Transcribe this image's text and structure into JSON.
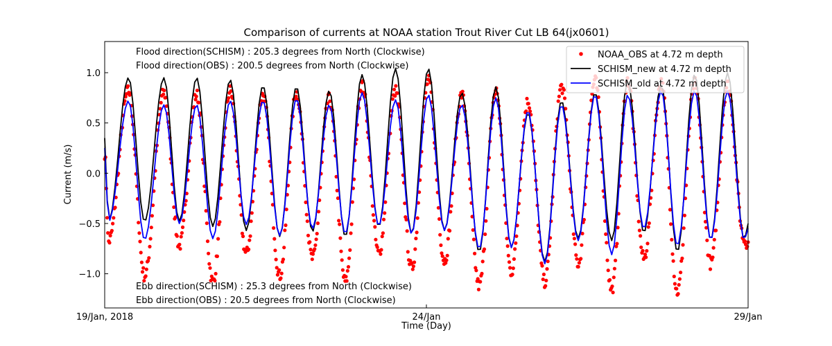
{
  "chart_data": {
    "type": "line",
    "title": "Comparison of currents at NOAA station Trout River Cut LB 64(jx0601)",
    "xlabel": "Time (Day)",
    "ylabel": "Current (m/s)",
    "xlim": [
      0,
      10
    ],
    "ylim": [
      -1.34,
      1.31
    ],
    "x_unit": "days since 19/Jan, 2018",
    "x_ticks": [
      {
        "value": 0,
        "label": "19/Jan, 2018"
      },
      {
        "value": 5,
        "label": "24/Jan"
      },
      {
        "value": 10,
        "label": "29/Jan"
      }
    ],
    "y_ticks": [
      {
        "value": 1.0,
        "label": "1.0"
      },
      {
        "value": 0.5,
        "label": "0.5"
      },
      {
        "value": 0.0,
        "label": "0.0"
      },
      {
        "value": -0.5,
        "label": "−0.5"
      },
      {
        "value": -1.0,
        "label": "−1.0"
      }
    ],
    "grid": false,
    "legend": {
      "placement": "top-right",
      "entries": [
        {
          "name": "NOAA_OBS at 4.72 m depth",
          "marker": "dot",
          "color": "#ff0000"
        },
        {
          "name": "SCHISM_new at 4.72 m depth",
          "marker": "line",
          "color": "#000000"
        },
        {
          "name": "SCHISM_old at 4.72 m depth",
          "marker": "line",
          "color": "#0000ff"
        }
      ]
    },
    "annotations": [
      {
        "text": "Flood direction(SCHISM) : 205.3 degrees from North (Clockwise)",
        "position": "top-left"
      },
      {
        "text": "Flood direction(OBS) : 200.5 degrees from North (Clockwise)",
        "position": "top-left"
      },
      {
        "text": "Ebb direction(SCHISM) : 25.3 degrees from North (Clockwise)",
        "position": "bottom-left"
      },
      {
        "text": "Ebb direction(OBS) : 20.5 degrees from North (Clockwise)",
        "position": "bottom-left"
      }
    ],
    "tidal_cycles": {
      "description": "Semidiurnal tidal current cycles; each entry gives the flood peak (x, value) and following ebb trough (x, value) per series, in days and m/s.",
      "start_value": {
        "SCHISM_new": 0.35,
        "SCHISM_old": 0.25,
        "NOAA_OBS": 0.2
      },
      "end_value": {
        "SCHISM_new": -0.5,
        "SCHISM_old": -0.55,
        "NOAA_OBS": -0.7
      },
      "cycles": [
        {
          "peak_x": 0.37,
          "new_peak": 0.95,
          "old_peak": 0.72,
          "obs_peak": 0.82,
          "trough_x": 0.06,
          "new_trough": -0.48,
          "old_trough": -0.48,
          "obs_trough": -0.68
        },
        {
          "peak_x": 0.92,
          "new_peak": 0.95,
          "old_peak": 0.68,
          "obs_peak": 0.8,
          "trough_x": 0.62,
          "new_trough": -0.48,
          "old_trough": -0.66,
          "obs_trough": -1.02
        },
        {
          "peak_x": 1.43,
          "new_peak": 0.95,
          "old_peak": 0.68,
          "obs_peak": 0.78,
          "trough_x": 1.16,
          "new_trough": -0.48,
          "old_trough": -0.5,
          "obs_trough": -0.72
        },
        {
          "peak_x": 1.95,
          "new_peak": 0.93,
          "old_peak": 0.72,
          "obs_peak": 0.82,
          "trough_x": 1.68,
          "new_trough": -0.53,
          "old_trough": -0.65,
          "obs_trough": -1.08
        },
        {
          "peak_x": 2.46,
          "new_peak": 0.87,
          "old_peak": 0.72,
          "obs_peak": 0.78,
          "trough_x": 2.2,
          "new_trough": -0.57,
          "old_trough": -0.51,
          "obs_trough": -0.8
        },
        {
          "peak_x": 2.98,
          "new_peak": 0.86,
          "old_peak": 0.74,
          "obs_peak": 0.8,
          "trough_x": 2.72,
          "new_trough": -0.63,
          "old_trough": -0.62,
          "obs_trough": -1.02
        },
        {
          "peak_x": 3.49,
          "new_peak": 0.82,
          "old_peak": 0.68,
          "obs_peak": 0.74,
          "trough_x": 3.23,
          "new_trough": -0.58,
          "old_trough": -0.55,
          "obs_trough": -0.85
        },
        {
          "peak_x": 4.0,
          "new_peak": 0.98,
          "old_peak": 0.8,
          "obs_peak": 0.88,
          "trough_x": 3.74,
          "new_trough": -0.63,
          "old_trough": -0.6,
          "obs_trough": -1.08
        },
        {
          "peak_x": 4.52,
          "new_peak": 1.04,
          "old_peak": 0.73,
          "obs_peak": 0.82,
          "trough_x": 4.26,
          "new_trough": -0.53,
          "old_trough": -0.52,
          "obs_trough": -0.8
        },
        {
          "peak_x": 5.03,
          "new_peak": 1.04,
          "old_peak": 0.78,
          "obs_peak": 0.92,
          "trough_x": 4.77,
          "new_trough": -0.6,
          "old_trough": -0.6,
          "obs_trough": -0.95
        },
        {
          "peak_x": 5.55,
          "new_peak": 0.8,
          "old_peak": 0.68,
          "obs_peak": 0.78,
          "trough_x": 5.28,
          "new_trough": -0.57,
          "old_trough": -0.57,
          "obs_trough": -0.87
        },
        {
          "peak_x": 6.08,
          "new_peak": 0.86,
          "old_peak": 0.75,
          "obs_peak": 0.82,
          "trough_x": 5.82,
          "new_trough": -0.78,
          "old_trough": -0.75,
          "obs_trough": -1.12
        },
        {
          "peak_x": 6.58,
          "new_peak": 0.6,
          "old_peak": 0.62,
          "obs_peak": 0.72,
          "trough_x": 6.32,
          "new_trough": -0.74,
          "old_trough": -0.74,
          "obs_trough": -0.98
        },
        {
          "peak_x": 7.1,
          "new_peak": 0.72,
          "old_peak": 0.68,
          "obs_peak": 0.86,
          "trough_x": 6.84,
          "new_trough": -0.88,
          "old_trough": -0.9,
          "obs_trough": -1.08
        },
        {
          "peak_x": 7.62,
          "new_peak": 0.8,
          "old_peak": 0.78,
          "obs_peak": 0.92,
          "trough_x": 7.36,
          "new_trough": -0.65,
          "old_trough": -0.67,
          "obs_trough": -0.9
        },
        {
          "peak_x": 8.13,
          "new_peak": 0.92,
          "old_peak": 0.78,
          "obs_peak": 0.92,
          "trough_x": 7.88,
          "new_trough": -0.67,
          "old_trough": -0.81,
          "obs_trough": -1.16
        },
        {
          "peak_x": 8.65,
          "new_peak": 0.88,
          "old_peak": 0.82,
          "obs_peak": 0.9,
          "trough_x": 8.38,
          "new_trough": -0.59,
          "old_trough": -0.55,
          "obs_trough": -0.85
        },
        {
          "peak_x": 9.17,
          "new_peak": 0.98,
          "old_peak": 0.82,
          "obs_peak": 0.9,
          "trough_x": 8.9,
          "new_trough": -0.78,
          "old_trough": -0.72,
          "obs_trough": -1.18
        },
        {
          "peak_x": 9.68,
          "new_peak": 1.0,
          "old_peak": 0.82,
          "obs_peak": 0.88,
          "trough_x": 9.42,
          "new_trough": -0.66,
          "old_trough": -0.66,
          "obs_trough": -0.9
        }
      ]
    },
    "series": [
      {
        "name": "NOAA_OBS at 4.72 m depth",
        "style": "scatter",
        "color": "#ff0000"
      },
      {
        "name": "SCHISM_new at 4.72 m depth",
        "style": "line",
        "color": "#000000"
      },
      {
        "name": "SCHISM_old at 4.72 m depth",
        "style": "line",
        "color": "#0000ff"
      }
    ]
  }
}
